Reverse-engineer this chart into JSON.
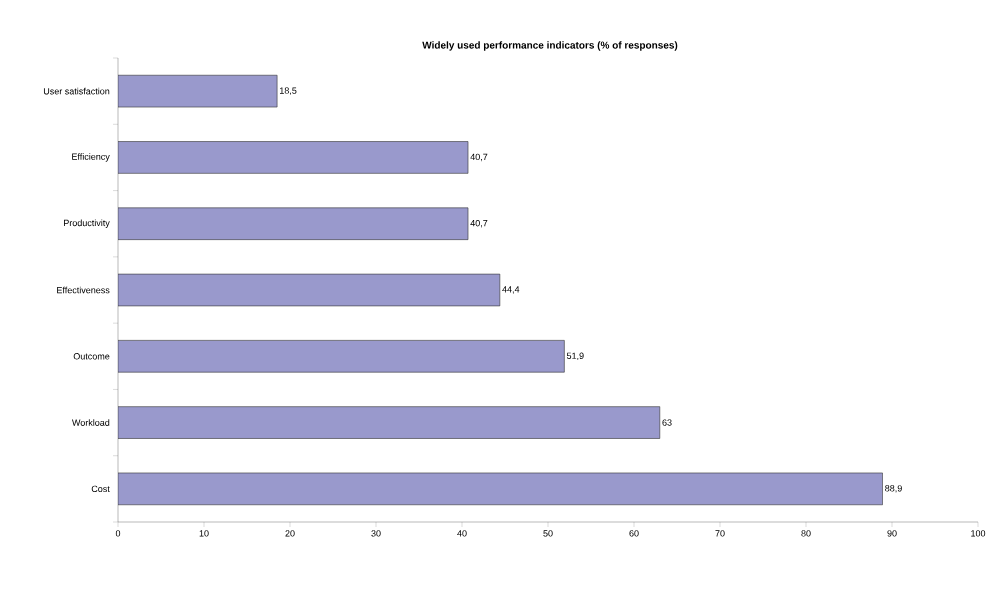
{
  "chart_data": {
    "type": "bar",
    "orientation": "horizontal",
    "title": "Widely used performance indicators (% of responses)",
    "categories": [
      "User satisfaction",
      "Efficiency",
      "Productivity",
      "Effectiveness",
      "Outcome",
      "Workload",
      "Cost"
    ],
    "values": [
      18.5,
      40.7,
      40.7,
      44.4,
      51.9,
      63,
      88.9
    ],
    "value_labels": [
      "18,5",
      "40,7",
      "40,7",
      "44,4",
      "51,9",
      "63",
      "88,9"
    ],
    "color": "#9999cc",
    "xlim": [
      0,
      100
    ],
    "xticks": [
      0,
      10,
      20,
      30,
      40,
      50,
      60,
      70,
      80,
      90,
      100
    ],
    "grid": false
  }
}
